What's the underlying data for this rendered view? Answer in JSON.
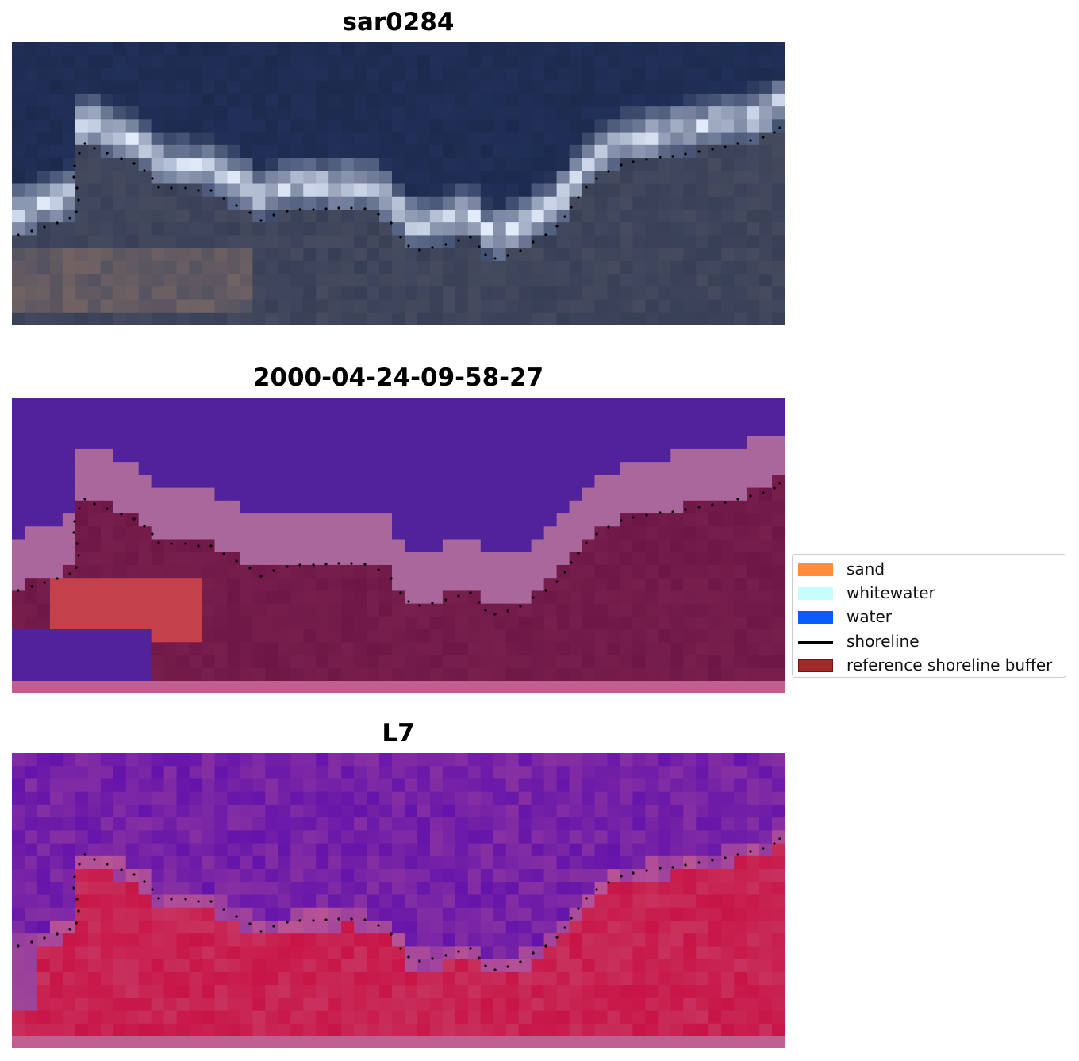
{
  "panels": [
    {
      "id": "rgb",
      "title": "sar0284"
    },
    {
      "id": "classified",
      "title": "2000-04-24-09-58-27"
    },
    {
      "id": "index",
      "title": "L7"
    }
  ],
  "legend": {
    "items": [
      {
        "label": "sand",
        "kind": "patch",
        "color": "#ff8c3a",
        "icon": "sand-swatch"
      },
      {
        "label": "whitewater",
        "kind": "patch",
        "color": "#c8fdfd",
        "icon": "whitewater-swatch"
      },
      {
        "label": "water",
        "kind": "patch",
        "color": "#0a5cff",
        "icon": "water-swatch"
      },
      {
        "label": "shoreline",
        "kind": "line",
        "color": "#000000",
        "icon": "shoreline-line"
      },
      {
        "label": "reference shoreline buffer",
        "kind": "patch",
        "color": "#a32a2a",
        "icon": "buffer-swatch"
      }
    ]
  },
  "colors": {
    "water_class": "#52229a",
    "whitewater_class": "#a9679c",
    "buffer_band": "#6e1746",
    "sand_class": "#c4404a",
    "index_high": "#c8103c",
    "index_low": "#5a0aa0"
  }
}
